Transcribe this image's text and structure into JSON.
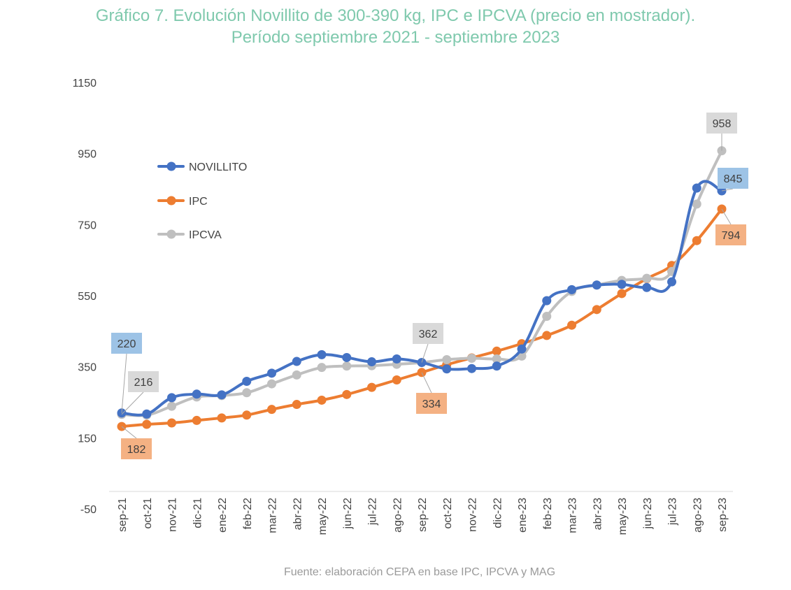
{
  "title_line1": "Gráfico 7. Evolución Novillito de 300-390 kg, IPC e IPCVA (precio en mostrador).",
  "title_line2": "Período septiembre 2021 - septiembre 2023",
  "source": "Fuente: elaboración CEPA en base IPC, IPCVA y MAG",
  "colors": {
    "novillito": "#4472c4",
    "ipc": "#ed7d31",
    "ipcva": "#bfbfbf",
    "title": "#7fc9ad"
  },
  "chart_data": {
    "type": "line",
    "title": "Gráfico 7. Evolución Novillito de 300-390 kg, IPC e IPCVA (precio en mostrador). Período septiembre 2021 - septiembre 2023",
    "xlabel": "",
    "ylabel": "",
    "ylim": [
      -50,
      1150
    ],
    "yticks": [
      -50,
      150,
      350,
      550,
      750,
      950,
      1150
    ],
    "grid": false,
    "legend_position": "upper-left",
    "categories": [
      "sep-21",
      "oct-21",
      "nov-21",
      "dic-21",
      "ene-22",
      "feb-22",
      "mar-22",
      "abr-22",
      "may-22",
      "jun-22",
      "jul-22",
      "ago-22",
      "sep-22",
      "oct-22",
      "nov-22",
      "dic-22",
      "ene-23",
      "feb-23",
      "mar-23",
      "abr-23",
      "may-23",
      "jun-23",
      "jul-23",
      "ago-23",
      "sep-23"
    ],
    "series": [
      {
        "name": "NOVILLITO",
        "color": "#4472c4",
        "values": [
          220,
          217,
          263,
          273,
          271,
          309,
          332,
          365,
          384,
          376,
          364,
          372,
          362,
          344,
          345,
          352,
          400,
          536,
          567,
          580,
          582,
          573,
          589,
          853,
          845
        ]
      },
      {
        "name": "IPC",
        "color": "#ed7d31",
        "values": [
          182,
          188,
          192,
          199,
          206,
          214,
          230,
          244,
          256,
          272,
          292,
          313,
          334,
          356,
          375,
          394,
          415,
          438,
          467,
          511,
          556,
          598,
          635,
          705,
          794
        ]
      },
      {
        "name": "IPCVA",
        "color": "#bfbfbf",
        "values": [
          216,
          214,
          239,
          265,
          269,
          277,
          302,
          327,
          348,
          352,
          353,
          357,
          362,
          370,
          374,
          372,
          380,
          492,
          562,
          580,
          593,
          599,
          618,
          808,
          958
        ]
      }
    ],
    "annotations": [
      {
        "series": "NOVILLITO",
        "category": "sep-21",
        "text": "220"
      },
      {
        "series": "IPCVA",
        "category": "sep-21",
        "text": "216"
      },
      {
        "series": "IPC",
        "category": "sep-21",
        "text": "182"
      },
      {
        "series": "IPCVA",
        "category": "sep-22",
        "text": "362"
      },
      {
        "series": "IPC",
        "category": "sep-22",
        "text": "334"
      },
      {
        "series": "IPCVA",
        "category": "sep-23",
        "text": "958"
      },
      {
        "series": "NOVILLITO",
        "category": "sep-23",
        "text": "845"
      },
      {
        "series": "IPC",
        "category": "sep-23",
        "text": "794"
      }
    ]
  }
}
